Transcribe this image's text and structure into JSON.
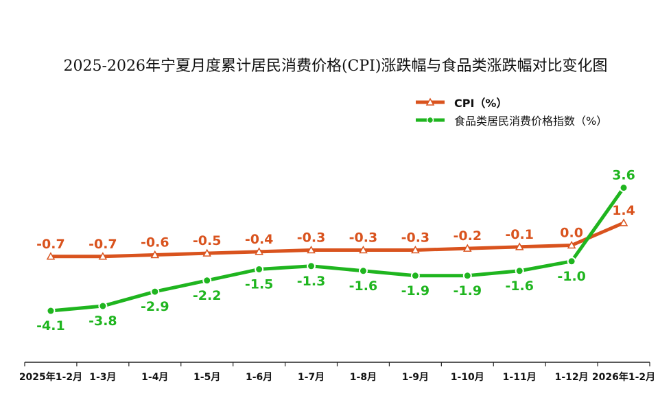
{
  "chart_data": {
    "type": "line",
    "title": "2025-2026年宁夏月度累计居民消费价格(CPI)涨跌幅与食品类涨跌幅对比变化图",
    "categories": [
      "2025年1-2月",
      "1-3月",
      "1-4月",
      "1-5月",
      "1-6月",
      "1-7月",
      "1-8月",
      "1-9月",
      "1-10月",
      "1-11月",
      "1-12月",
      "2026年1-2月"
    ],
    "series": [
      {
        "name": "CPI（%）",
        "values": [
          -0.7,
          -0.7,
          -0.6,
          -0.5,
          -0.4,
          -0.3,
          -0.3,
          -0.3,
          -0.2,
          -0.1,
          0.0,
          1.4
        ],
        "color": "#d9531e",
        "marker": "triangle",
        "labels": [
          "-0.7",
          "-0.7",
          "-0.6",
          "-0.5",
          "-0.4",
          "-0.3",
          "-0.3",
          "-0.3",
          "-0.2",
          "-0.1",
          "0.0",
          "1.4"
        ]
      },
      {
        "name": "食品类居民消费价格指数（%）",
        "values": [
          -4.1,
          -3.8,
          -2.9,
          -2.2,
          -1.5,
          -1.3,
          -1.6,
          -1.9,
          -1.9,
          -1.6,
          -1.0,
          3.6
        ],
        "color": "#1fb51f",
        "marker": "circle",
        "labels": [
          "-4.1",
          "-3.8",
          "-2.9",
          "-2.2",
          "-1.5",
          "-1.3",
          "-1.6",
          "-1.9",
          "-1.9",
          "-1.6",
          "-1.0",
          "3.6"
        ]
      }
    ],
    "legend_position": "top-right",
    "grid": false
  }
}
